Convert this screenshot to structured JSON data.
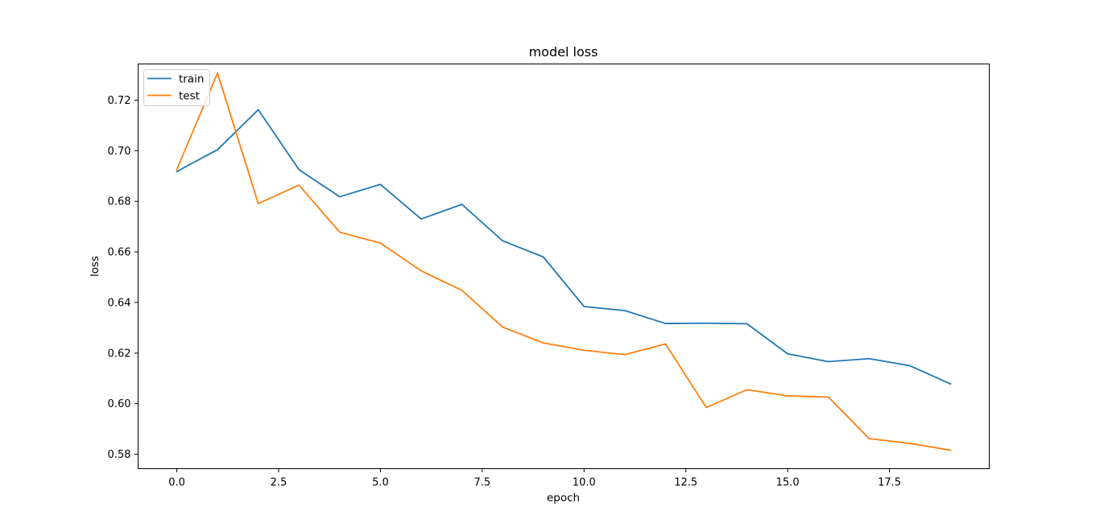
{
  "chart_data": {
    "type": "line",
    "title": "model loss",
    "xlabel": "epoch",
    "ylabel": "loss",
    "xlim": [
      -0.95,
      19.95
    ],
    "ylim": [
      0.5743,
      0.7343
    ],
    "xticks": [
      0.0,
      2.5,
      5.0,
      7.5,
      10.0,
      12.5,
      15.0,
      17.5
    ],
    "xtick_labels": [
      "0.0",
      "2.5",
      "5.0",
      "7.5",
      "10.0",
      "12.5",
      "15.0",
      "17.5"
    ],
    "yticks": [
      0.58,
      0.6,
      0.62,
      0.64,
      0.66,
      0.68,
      0.7,
      0.72
    ],
    "ytick_labels": [
      "0.58",
      "0.60",
      "0.62",
      "0.64",
      "0.66",
      "0.68",
      "0.70",
      "0.72"
    ],
    "grid": false,
    "legend_position": "top-left",
    "x": [
      0,
      1,
      2,
      3,
      4,
      5,
      6,
      7,
      8,
      9,
      10,
      11,
      12,
      13,
      14,
      15,
      16,
      17,
      18,
      19
    ],
    "series": [
      {
        "name": "train",
        "color": "#1f77b4",
        "values": [
          0.6918,
          0.7004,
          0.7162,
          0.6925,
          0.6818,
          0.6867,
          0.673,
          0.6788,
          0.6644,
          0.658,
          0.6384,
          0.6368,
          0.6317,
          0.6318,
          0.6316,
          0.6197,
          0.6166,
          0.6178,
          0.615,
          0.6078
        ]
      },
      {
        "name": "test",
        "color": "#ff7f0e",
        "values": [
          0.6926,
          0.7307,
          0.6791,
          0.6864,
          0.6678,
          0.6635,
          0.6525,
          0.6448,
          0.6303,
          0.624,
          0.6211,
          0.6194,
          0.6236,
          0.5985,
          0.6055,
          0.6031,
          0.6026,
          0.5862,
          0.5843,
          0.5816
        ]
      }
    ]
  }
}
